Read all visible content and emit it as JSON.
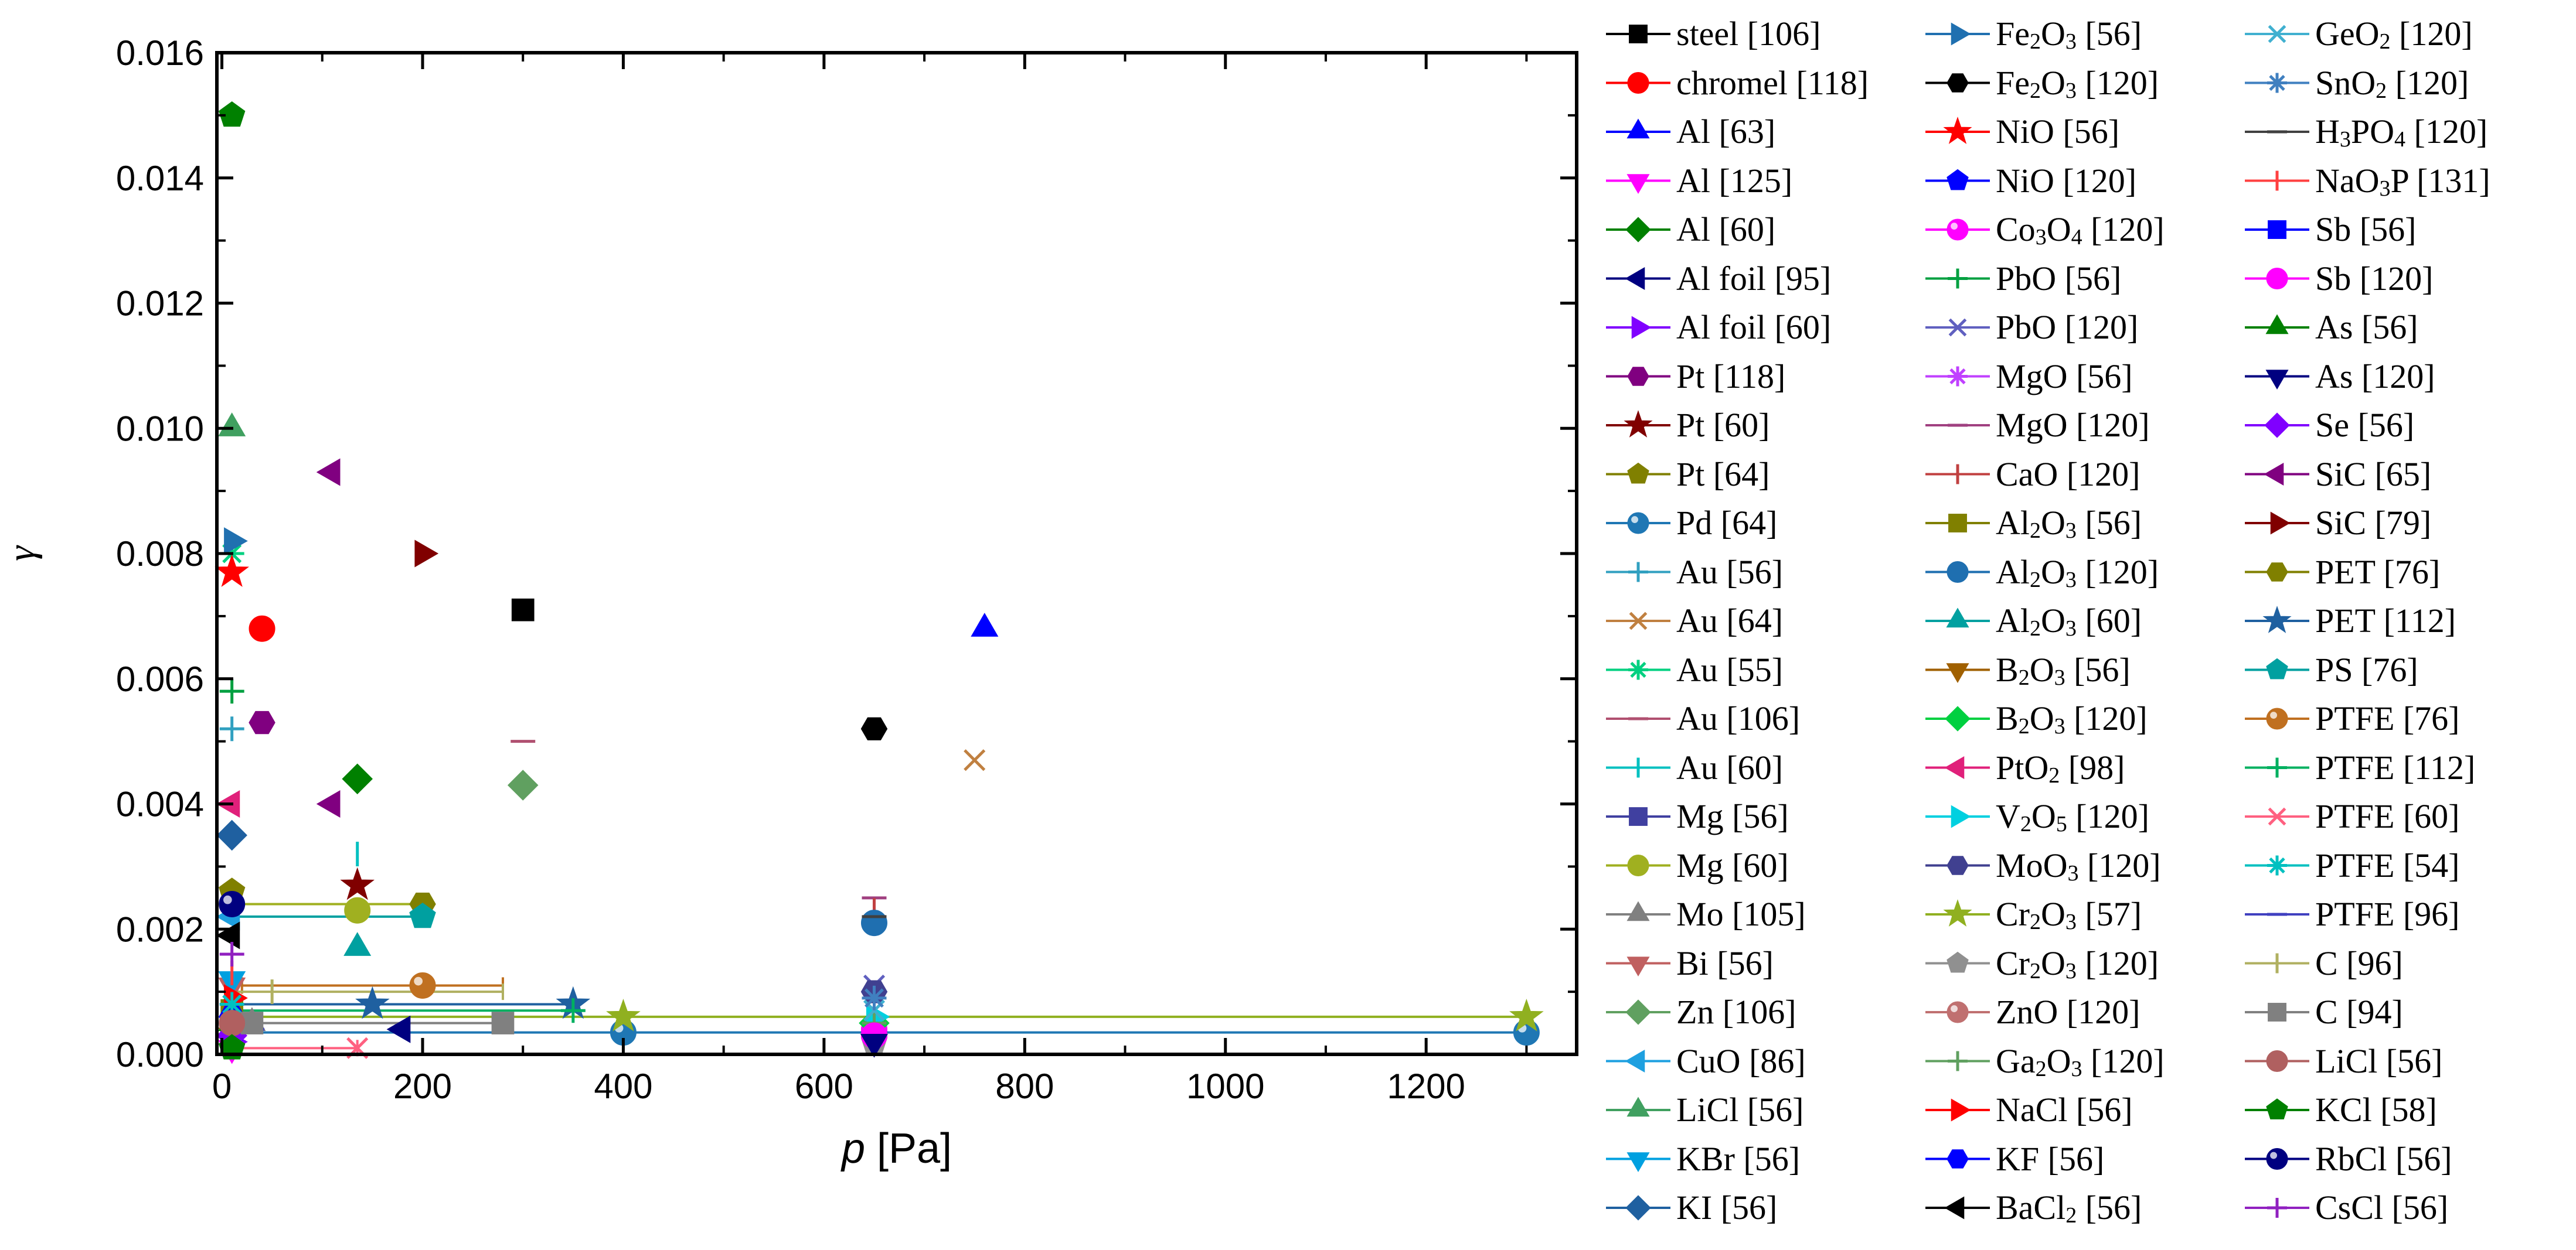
{
  "chart_data": {
    "type": "scatter",
    "title": "",
    "xlabel": "p [Pa]",
    "ylabel": "γ",
    "xlim": [
      -5,
      1350
    ],
    "ylim": [
      0,
      0.016
    ],
    "xticks": [
      0,
      200,
      400,
      600,
      800,
      1000,
      1200
    ],
    "yticks": [
      0.0,
      0.002,
      0.004,
      0.006,
      0.008,
      0.01,
      0.012,
      0.014,
      0.016
    ],
    "xtick_labels": [
      "0",
      "200",
      "400",
      "600",
      "800",
      "1000",
      "1200"
    ],
    "ytick_labels": [
      "0.000",
      "0.002",
      "0.004",
      "0.006",
      "0.008",
      "0.010",
      "0.012",
      "0.014",
      "0.016"
    ],
    "legend_position": "right",
    "series": [
      {
        "name": "steel [106]",
        "html": "steel [106]",
        "color": "#000000",
        "marker": "square",
        "points": [
          [
            300,
            0.0071
          ]
        ]
      },
      {
        "name": "chromel [118]",
        "html": "chromel [118]",
        "color": "#ff0000",
        "marker": "circle",
        "points": [
          [
            40,
            0.0068
          ]
        ]
      },
      {
        "name": "Al [63]",
        "html": "Al [63]",
        "color": "#0000ff",
        "marker": "triangle-up",
        "points": [
          [
            760,
            0.0068
          ]
        ]
      },
      {
        "name": "Al [125]",
        "html": "Al [125]",
        "color": "#ff00ff",
        "marker": "triangle-down",
        "points": [
          [
            10,
            0.0001
          ]
        ]
      },
      {
        "name": "Al [60]",
        "html": "Al [60]",
        "color": "#008000",
        "marker": "diamond",
        "points": [
          [
            135,
            0.0044
          ]
        ]
      },
      {
        "name": "Al foil [95]",
        "html": "Al foil [95]",
        "color": "#000080",
        "marker": "triangle-left",
        "points": [
          [
            180,
            0.0004
          ]
        ]
      },
      {
        "name": "Al foil [60]",
        "html": "Al foil [60]",
        "color": "#8000ff",
        "marker": "triangle-right",
        "points": [
          [
            10,
            0.0002
          ]
        ]
      },
      {
        "name": "Pt [118]",
        "html": "Pt [118]",
        "color": "#800080",
        "marker": "hexagon",
        "points": [
          [
            40,
            0.0053
          ]
        ]
      },
      {
        "name": "Pt [60]",
        "html": "Pt [60]",
        "color": "#800000",
        "marker": "star",
        "points": [
          [
            135,
            0.0027
          ]
        ]
      },
      {
        "name": "Pt [64]",
        "html": "Pt [64]",
        "color": "#808000",
        "marker": "pentagon",
        "points": [
          [
            10,
            0.0026
          ]
        ]
      },
      {
        "name": "Pd [64]",
        "html": "Pd [64]",
        "color": "#1f77b4",
        "marker": "sphere",
        "points": [
          [
            400,
            0.00035
          ],
          [
            1300,
            0.00035
          ]
        ],
        "errx": [
          [
            10,
            1300,
            0.00035
          ]
        ]
      },
      {
        "name": "Au [56]",
        "html": "Au [56]",
        "color": "#31a0c0",
        "marker": "plus",
        "points": [
          [
            10,
            0.0052
          ]
        ]
      },
      {
        "name": "Au [64]",
        "html": "Au [64]",
        "color": "#c08040",
        "marker": "cross",
        "points": [
          [
            750,
            0.0047
          ]
        ]
      },
      {
        "name": "Au [55]",
        "html": "Au [55]",
        "color": "#00d080",
        "marker": "asterisk",
        "points": [
          [
            10,
            0.008
          ]
        ]
      },
      {
        "name": "Au [106]",
        "html": "Au [106]",
        "color": "#b05070",
        "marker": "hbar",
        "points": [
          [
            300,
            0.005
          ]
        ]
      },
      {
        "name": "Au [60]",
        "html": "Au [60]",
        "color": "#00c0c0",
        "marker": "vbar",
        "points": [
          [
            135,
            0.0032
          ]
        ]
      },
      {
        "name": "Mg [56]",
        "html": "Mg [56]",
        "color": "#4040a0",
        "marker": "square",
        "points": [
          [
            10,
            0.0004
          ]
        ]
      },
      {
        "name": "Mg [60]",
        "html": "Mg [60]",
        "color": "#a0b020",
        "marker": "circle",
        "points": [
          [
            135,
            0.0023
          ]
        ],
        "errx": [
          [
            10,
            200,
            0.0024
          ]
        ]
      },
      {
        "name": "Mo [105]",
        "html": "Mo [105]",
        "color": "#808080",
        "marker": "triangle-up",
        "points": [
          [
            30,
            0.0005
          ]
        ]
      },
      {
        "name": "Bi [56]",
        "html": "Bi [56]",
        "color": "#c06060",
        "marker": "triangle-down",
        "points": [
          [
            10,
            0.0011
          ]
        ]
      },
      {
        "name": "Zn [106]",
        "html": "Zn [106]",
        "color": "#60a060",
        "marker": "diamond",
        "points": [
          [
            300,
            0.0043
          ]
        ]
      },
      {
        "name": "CuO [86]",
        "html": "CuO [86]",
        "color": "#1ea0e0",
        "marker": "triangle-left",
        "points": [
          [
            10,
            0.0022
          ]
        ]
      },
      {
        "name": "LiCl [56]",
        "html": "LiCl [56]",
        "color": "#40a060",
        "marker": "triangle-up",
        "points": [
          [
            10,
            0.01
          ]
        ]
      },
      {
        "name": "KBr [56]",
        "html": "KBr [56]",
        "color": "#00a0e0",
        "marker": "triangle-down",
        "points": [
          [
            10,
            0.0012
          ]
        ]
      },
      {
        "name": "KI [56]",
        "html": "KI [56]",
        "color": "#1f60a0",
        "marker": "diamond",
        "points": [
          [
            10,
            0.0035
          ]
        ]
      },
      {
        "name": "Fe2O3 [56]",
        "html": "Fe<sub>2</sub>O<sub>3</sub> [56]",
        "color": "#2070b0",
        "marker": "triangle-right",
        "points": [
          [
            10,
            0.0082
          ]
        ]
      },
      {
        "name": "Fe2O3 [120]",
        "html": "Fe<sub>2</sub>O<sub>3</sub> [120]",
        "color": "#000000",
        "marker": "hexagon",
        "points": [
          [
            650,
            0.0052
          ]
        ]
      },
      {
        "name": "NiO [56]",
        "html": "NiO [56]",
        "color": "#ff0000",
        "marker": "star",
        "points": [
          [
            10,
            0.0077
          ]
        ]
      },
      {
        "name": "NiO [120]",
        "html": "NiO [120]",
        "color": "#0000ff",
        "marker": "pentagon",
        "points": [
          [
            650,
            0.0003
          ]
        ]
      },
      {
        "name": "Co3O4 [120]",
        "html": "Co<sub>3</sub>O<sub>4</sub> [120]",
        "color": "#ff00ff",
        "marker": "sphere",
        "points": [
          [
            650,
            0.0004
          ]
        ]
      },
      {
        "name": "PbO [56]",
        "html": "PbO [56]",
        "color": "#00a040",
        "marker": "plus",
        "points": [
          [
            10,
            0.0058
          ]
        ]
      },
      {
        "name": "PbO [120]",
        "html": "PbO [120]",
        "color": "#6060c0",
        "marker": "cross",
        "points": [
          [
            650,
            0.0011
          ]
        ]
      },
      {
        "name": "MgO [56]",
        "html": "MgO [56]",
        "color": "#c040ff",
        "marker": "asterisk",
        "points": [
          [
            10,
            0.0008
          ]
        ]
      },
      {
        "name": "MgO [120]",
        "html": "MgO [120]",
        "color": "#a04080",
        "marker": "hbar",
        "points": [
          [
            650,
            0.0025
          ]
        ]
      },
      {
        "name": "CaO [120]",
        "html": "CaO [120]",
        "color": "#c04040",
        "marker": "vbar",
        "points": [
          [
            650,
            0.0023
          ]
        ]
      },
      {
        "name": "Al2O3 [56]",
        "html": "Al<sub>2</sub>O<sub>3</sub> [56]",
        "color": "#808000",
        "marker": "square",
        "points": [
          [
            10,
            0.0007
          ]
        ]
      },
      {
        "name": "Al2O3 [120]",
        "html": "Al<sub>2</sub>O<sub>3</sub> [120]",
        "color": "#1f6fb0",
        "marker": "circle",
        "points": [
          [
            650,
            0.0021
          ]
        ]
      },
      {
        "name": "Al2O3 [60]",
        "html": "Al<sub>2</sub>O<sub>3</sub> [60]",
        "color": "#00a0a0",
        "marker": "triangle-up",
        "points": [
          [
            135,
            0.0017
          ]
        ]
      },
      {
        "name": "B2O3 [56]",
        "html": "B<sub>2</sub>O<sub>3</sub> [56]",
        "color": "#a06000",
        "marker": "triangle-down",
        "points": [
          [
            10,
            0.0003
          ]
        ]
      },
      {
        "name": "B2O3 [120]",
        "html": "B<sub>2</sub>O<sub>3</sub> [120]",
        "color": "#00d040",
        "marker": "diamond",
        "points": [
          [
            650,
            0.0005
          ]
        ]
      },
      {
        "name": "PtO2 [98]",
        "html": "PtO<sub>2</sub> [98]",
        "color": "#e0207a",
        "marker": "triangle-left",
        "points": [
          [
            10,
            0.004
          ]
        ]
      },
      {
        "name": "V2O5 [120]",
        "html": "V<sub>2</sub>O<sub>5</sub> [120]",
        "color": "#00d0e0",
        "marker": "triangle-right",
        "points": [
          [
            650,
            0.0006
          ]
        ]
      },
      {
        "name": "MoO3 [120]",
        "html": "MoO<sub>3</sub> [120]",
        "color": "#404090",
        "marker": "hexagon",
        "points": [
          [
            650,
            0.001
          ]
        ]
      },
      {
        "name": "Cr2O3 [57]",
        "html": "Cr<sub>2</sub>O<sub>3</sub> [57]",
        "color": "#90b020",
        "marker": "star",
        "points": [
          [
            400,
            0.0006
          ],
          [
            1300,
            0.0006
          ]
        ],
        "errx": [
          [
            10,
            1300,
            0.0006
          ]
        ]
      },
      {
        "name": "Cr2O3 [120]",
        "html": "Cr<sub>2</sub>O<sub>3</sub> [120]",
        "color": "#909090",
        "marker": "pentagon",
        "points": [
          [
            650,
            0.0002
          ]
        ]
      },
      {
        "name": "ZnO [120]",
        "html": "ZnO [120]",
        "color": "#c07070",
        "marker": "sphere",
        "points": [
          [
            650,
            0.0003
          ]
        ]
      },
      {
        "name": "Ga2O3 [120]",
        "html": "Ga<sub>2</sub>O<sub>3</sub> [120]",
        "color": "#60a060",
        "marker": "plus",
        "points": [
          [
            650,
            0.0005
          ]
        ]
      },
      {
        "name": "NaCl [56]",
        "html": "NaCl [56]",
        "color": "#ff0000",
        "marker": "triangle-right",
        "points": [
          [
            10,
            0.0009
          ]
        ]
      },
      {
        "name": "KF [56]",
        "html": "KF [56]",
        "color": "#0000ff",
        "marker": "hexagon",
        "points": [
          [
            10,
            0.0006
          ]
        ]
      },
      {
        "name": "BaCl2 [56]",
        "html": "BaCl<sub>2</sub> [56]",
        "color": "#000000",
        "marker": "triangle-left",
        "points": [
          [
            10,
            0.0019
          ]
        ]
      },
      {
        "name": "GeO2 [120]",
        "html": "GeO<sub>2</sub> [120]",
        "color": "#40b0d0",
        "marker": "cross",
        "points": [
          [
            650,
            0.0007
          ]
        ]
      },
      {
        "name": "SnO2 [120]",
        "html": "SnO<sub>2</sub> [120]",
        "color": "#4080c0",
        "marker": "asterisk",
        "points": [
          [
            650,
            0.0009
          ]
        ]
      },
      {
        "name": "H3PO4 [120]",
        "html": "H<sub>3</sub>PO<sub>4</sub> [120]",
        "color": "#404040",
        "marker": "hbar",
        "points": [
          [
            650,
            0.0022
          ]
        ]
      },
      {
        "name": "NaO3P [131]",
        "html": "NaO<sub>3</sub>P [131]",
        "color": "#ff4040",
        "marker": "vbar",
        "points": [
          [
            10,
            0.0013
          ]
        ]
      },
      {
        "name": "Sb [56]",
        "html": "Sb [56]",
        "color": "#0000ff",
        "marker": "square",
        "points": [
          [
            10,
            0.0004
          ]
        ]
      },
      {
        "name": "Sb [120]",
        "html": "Sb [120]",
        "color": "#ff00ff",
        "marker": "circle",
        "points": [
          [
            650,
            0.0003
          ]
        ]
      },
      {
        "name": "As [56]",
        "html": "As [56]",
        "color": "#008000",
        "marker": "triangle-up",
        "points": [
          [
            10,
            0.0005
          ]
        ]
      },
      {
        "name": "As [120]",
        "html": "As [120]",
        "color": "#000080",
        "marker": "triangle-down",
        "points": [
          [
            650,
            0.0002
          ]
        ]
      },
      {
        "name": "Se [56]",
        "html": "Se [56]",
        "color": "#8000ff",
        "marker": "diamond",
        "points": [
          [
            10,
            0.0003
          ]
        ]
      },
      {
        "name": "SiC [65]",
        "html": "SiC [65]",
        "color": "#800080",
        "marker": "triangle-left",
        "points": [
          [
            110,
            0.0093
          ],
          [
            110,
            0.004
          ]
        ]
      },
      {
        "name": "SiC [79]",
        "html": "SiC [79]",
        "color": "#800000",
        "marker": "triangle-right",
        "points": [
          [
            200,
            0.008
          ]
        ]
      },
      {
        "name": "PET [76]",
        "html": "PET [76]",
        "color": "#808000",
        "marker": "hexagon",
        "points": [
          [
            200,
            0.0024
          ]
        ]
      },
      {
        "name": "PET [112]",
        "html": "PET [112]",
        "color": "#1f60a0",
        "marker": "star",
        "points": [
          [
            150,
            0.0008
          ],
          [
            350,
            0.0008
          ]
        ],
        "errx": [
          [
            20,
            350,
            0.0008
          ]
        ]
      },
      {
        "name": "PS [76]",
        "html": "PS [76]",
        "color": "#00a0a0",
        "marker": "pentagon",
        "points": [
          [
            200,
            0.0022
          ]
        ],
        "errx": [
          [
            10,
            200,
            0.0022
          ]
        ]
      },
      {
        "name": "PTFE [76]",
        "html": "PTFE [76]",
        "color": "#c07020",
        "marker": "sphere",
        "points": [
          [
            200,
            0.0011
          ]
        ],
        "errx": [
          [
            20,
            280,
            0.0011
          ]
        ]
      },
      {
        "name": "PTFE [112]",
        "html": "PTFE [112]",
        "color": "#00b060",
        "marker": "plus",
        "points": [
          [
            350,
            0.0007
          ]
        ],
        "errx": [
          [
            20,
            350,
            0.0007
          ]
        ]
      },
      {
        "name": "PTFE [60]",
        "html": "PTFE [60]",
        "color": "#ff6080",
        "marker": "cross",
        "points": [
          [
            135,
            0.0001
          ]
        ],
        "errx": [
          [
            10,
            135,
            0.0001
          ]
        ]
      },
      {
        "name": "PTFE [54]",
        "html": "PTFE [54]",
        "color": "#00c0c0",
        "marker": "asterisk",
        "points": [
          [
            10,
            0.0008
          ]
        ]
      },
      {
        "name": "PTFE [96]",
        "html": "PTFE [96]",
        "color": "#4040c0",
        "marker": "hbar",
        "points": [
          [
            30,
            0.0004
          ]
        ]
      },
      {
        "name": "C [96]",
        "html": "C [96]",
        "color": "#b0b060",
        "marker": "vbar",
        "points": [
          [
            50,
            0.001
          ]
        ],
        "errx": [
          [
            10,
            280,
            0.001
          ]
        ]
      },
      {
        "name": "C [94]",
        "html": "C [94]",
        "color": "#808080",
        "marker": "square",
        "points": [
          [
            30,
            0.0005
          ],
          [
            280,
            0.0005
          ]
        ],
        "errx": [
          [
            30,
            280,
            0.0005
          ]
        ]
      },
      {
        "name": "LiCl [56]",
        "html": "LiCl [56]",
        "color": "#b06060",
        "marker": "circle",
        "points": [
          [
            10,
            0.0005
          ]
        ]
      },
      {
        "name": "KCl [58]",
        "html": "KCl [58]",
        "color": "#008000",
        "marker": "pentagon",
        "points": [
          [
            10,
            0.015
          ],
          [
            10,
            0.0001
          ]
        ]
      },
      {
        "name": "RbCl [56]",
        "html": "RbCl [56]",
        "color": "#000080",
        "marker": "sphere",
        "points": [
          [
            10,
            0.0024
          ]
        ]
      },
      {
        "name": "CsCl [56]",
        "html": "CsCl [56]",
        "color": "#9020c0",
        "marker": "plus",
        "points": [
          [
            10,
            0.0016
          ]
        ]
      }
    ]
  }
}
